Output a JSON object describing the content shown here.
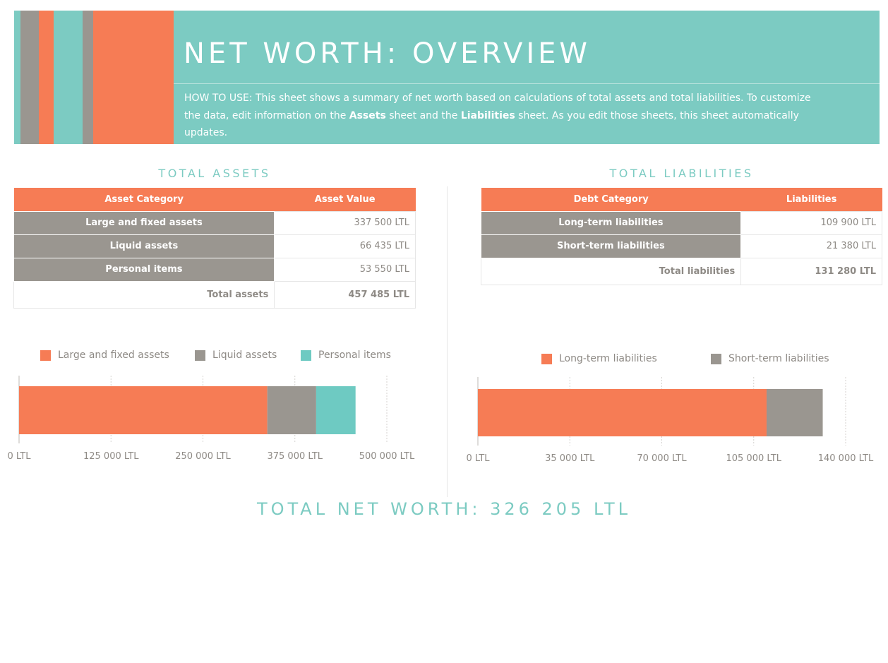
{
  "colors": {
    "teal": "#7ccbc2",
    "orange": "#f67c55",
    "gray": "#9a9690",
    "chart_teal": "#6ecac2"
  },
  "header": {
    "title": "NET WORTH: OVERVIEW",
    "howto_prefix": "HOW TO USE: This sheet shows a summary of net worth based on calculations of total assets and total liabilities.  To customize the data, edit information on the ",
    "howto_assets": "Assets",
    "howto_mid": " sheet and the ",
    "howto_liabilities": "Liabilities",
    "howto_suffix": " sheet.  As you edit those sheets, this sheet automatically updates."
  },
  "assets": {
    "title": "TOTAL ASSETS",
    "col_category": "Asset Category",
    "col_value": "Asset Value",
    "rows": [
      {
        "category": "Large and fixed assets",
        "value": "337 500 LTL"
      },
      {
        "category": "Liquid assets",
        "value": "66 435 LTL"
      },
      {
        "category": "Personal items",
        "value": "53 550 LTL"
      }
    ],
    "total_label": "Total assets",
    "total_value": "457 485 LTL"
  },
  "liabilities": {
    "title": "TOTAL LIABILITIES",
    "col_category": "Debt Category",
    "col_value": "Liabilities",
    "rows": [
      {
        "category": "Long-term liabilities",
        "value": "109 900 LTL"
      },
      {
        "category": "Short-term liabilities",
        "value": "21 380 LTL"
      }
    ],
    "total_label": "Total liabilities",
    "total_value": "131 280 LTL"
  },
  "chart_data": [
    {
      "type": "bar",
      "orientation": "horizontal",
      "stacked": true,
      "series": [
        {
          "name": "Large and fixed assets",
          "values": [
            337500
          ],
          "color": "#f67c55"
        },
        {
          "name": "Liquid assets",
          "values": [
            66435
          ],
          "color": "#9a9690"
        },
        {
          "name": "Personal items",
          "values": [
            53550
          ],
          "color": "#6ecac2"
        }
      ],
      "xlim": [
        0,
        500000
      ],
      "tick_values": [
        0,
        125000,
        250000,
        375000,
        500000
      ],
      "tick_labels": [
        "0 LTL",
        "125 000 LTL",
        "250 000 LTL",
        "375 000 LTL",
        "500 000 LTL"
      ],
      "legend": "top",
      "grid": true
    },
    {
      "type": "bar",
      "orientation": "horizontal",
      "stacked": true,
      "series": [
        {
          "name": "Long-term liabilities",
          "values": [
            109900
          ],
          "color": "#f67c55"
        },
        {
          "name": "Short-term liabilities",
          "values": [
            21380
          ],
          "color": "#9a9690"
        }
      ],
      "xlim": [
        0,
        140000
      ],
      "tick_values": [
        0,
        35000,
        70000,
        105000,
        140000
      ],
      "tick_labels": [
        "0 LTL",
        "35 000 LTL",
        "70 000 LTL",
        "105 000 LTL",
        "140 000 LTL"
      ],
      "legend": "top",
      "grid": true
    }
  ],
  "net_worth": {
    "label": "TOTAL NET WORTH: 326 205 LTL"
  }
}
